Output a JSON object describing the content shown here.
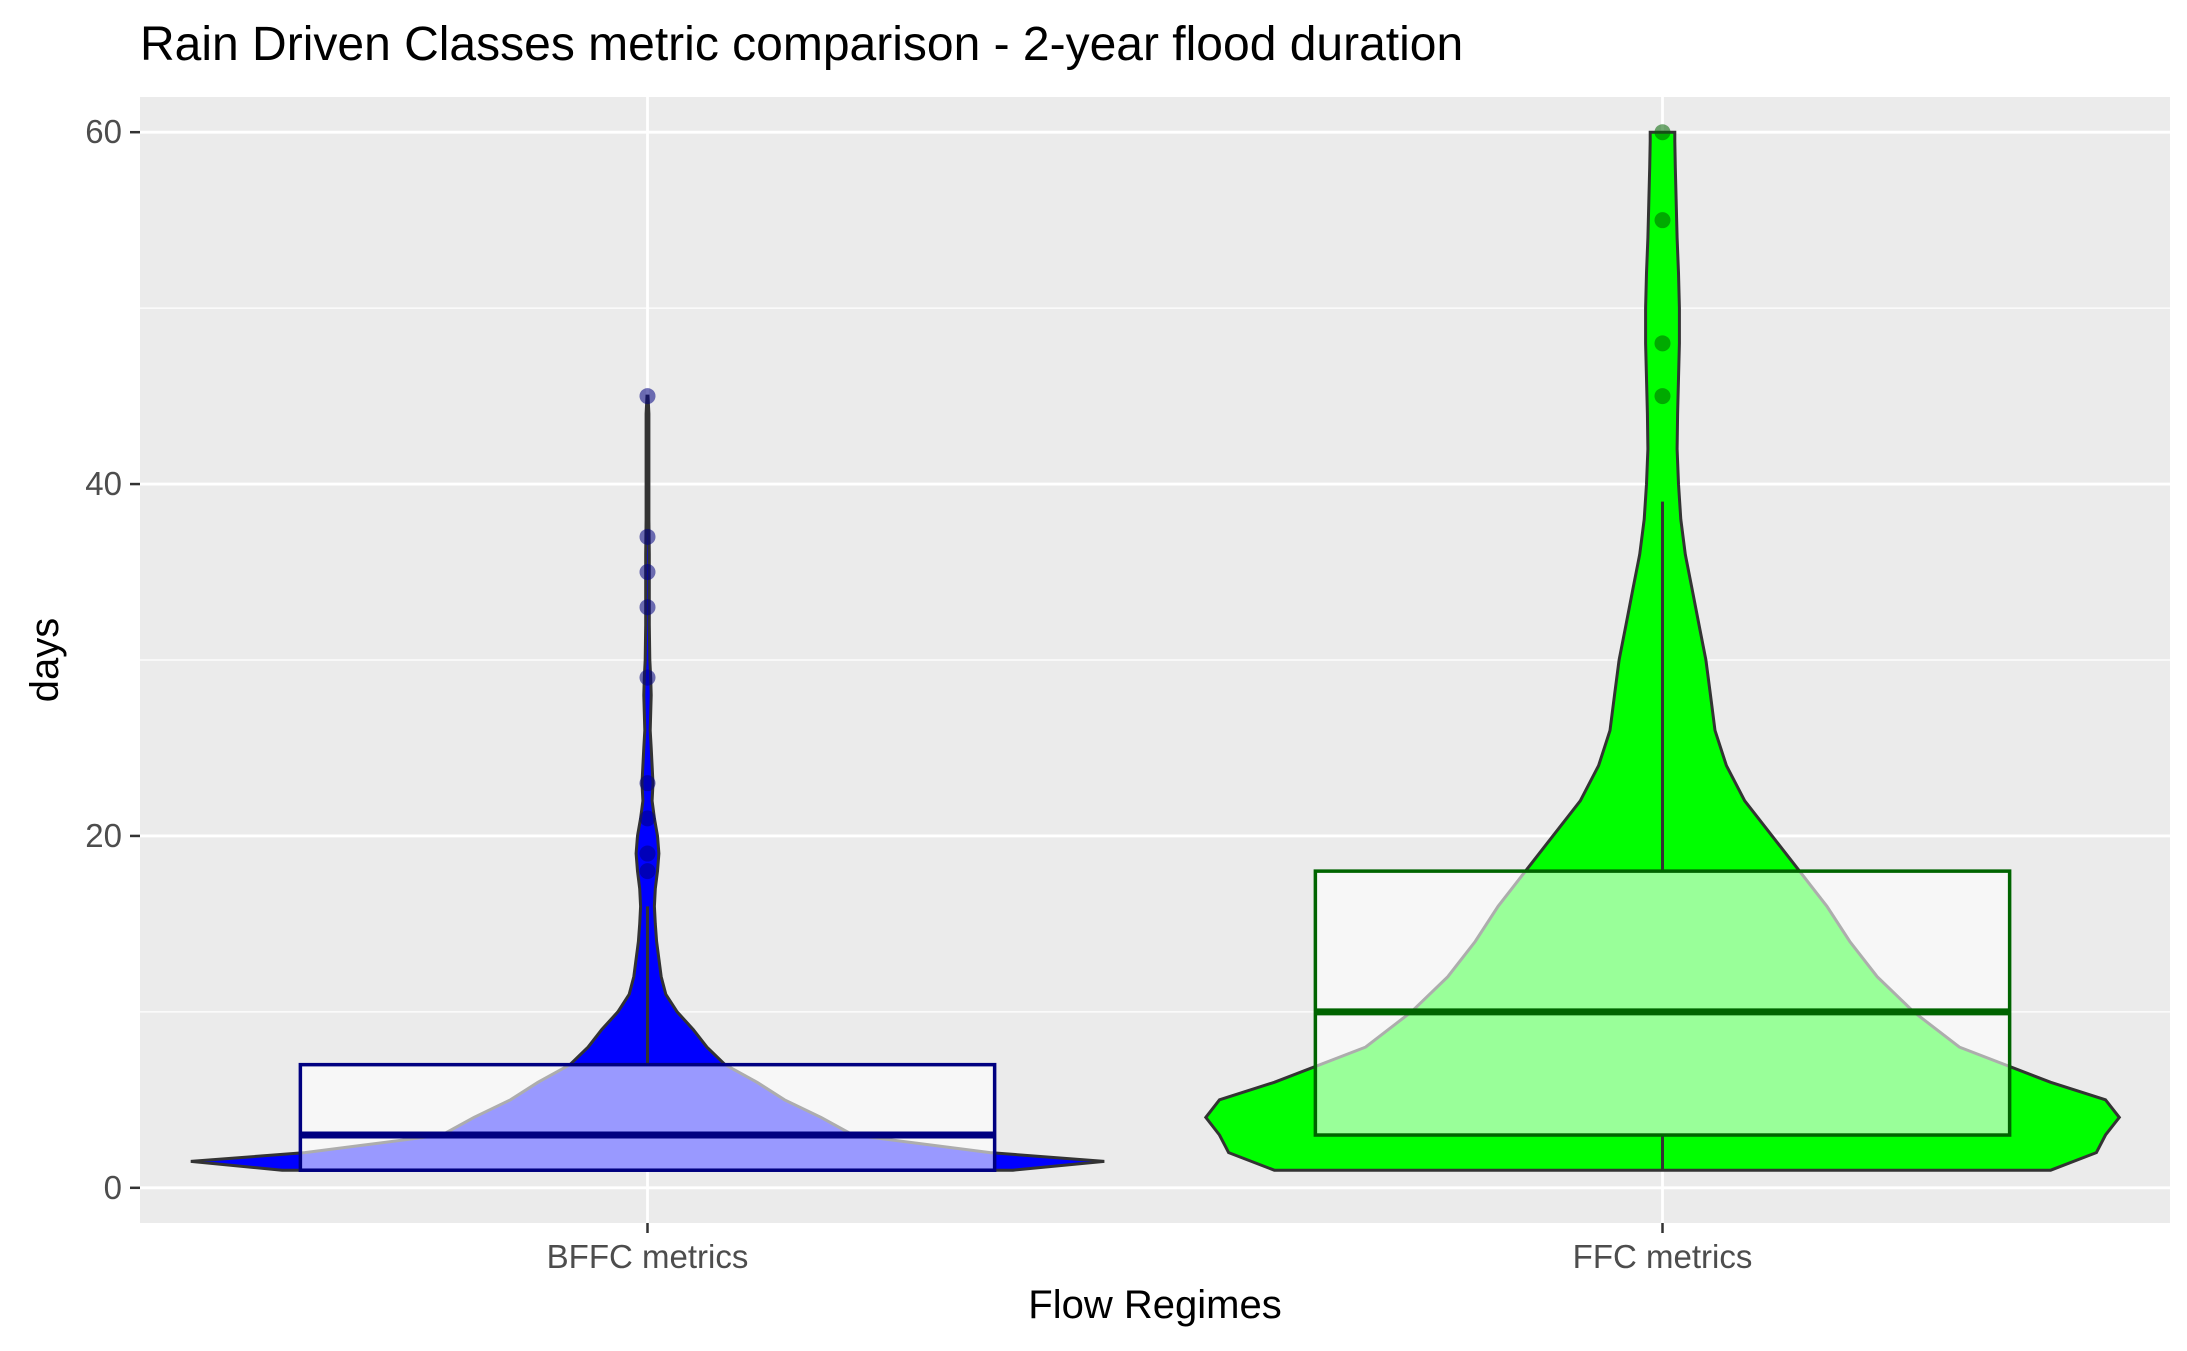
{
  "chart_data": {
    "type": "violin",
    "title": "Rain Driven Classes metric comparison - 2-year flood duration",
    "xlabel": "Flow Regimes",
    "ylabel": "days",
    "categories": [
      "BFFC metrics",
      "FFC metrics"
    ],
    "ylim": [
      -2,
      62
    ],
    "yticks": [
      0,
      20,
      40,
      60
    ],
    "grid": true,
    "legend": "none",
    "series": [
      {
        "category": "BFFC metrics",
        "fill_color": "#0000ff",
        "box_color": "#000080",
        "box": {
          "min": 1,
          "q1": 1,
          "median": 3,
          "q3": 7,
          "whisker_high": 16
        },
        "outliers": [
          18,
          19,
          21,
          23,
          29,
          33,
          35,
          37,
          45
        ],
        "density": [
          [
            1,
            0.8
          ],
          [
            1.5,
            1.0
          ],
          [
            2,
            0.75
          ],
          [
            3,
            0.45
          ],
          [
            4,
            0.38
          ],
          [
            5,
            0.3
          ],
          [
            6,
            0.24
          ],
          [
            7,
            0.17
          ],
          [
            8,
            0.13
          ],
          [
            9,
            0.1
          ],
          [
            10,
            0.065
          ],
          [
            11,
            0.04
          ],
          [
            12,
            0.03
          ],
          [
            13,
            0.025
          ],
          [
            14,
            0.02
          ],
          [
            15,
            0.017
          ],
          [
            16,
            0.015
          ],
          [
            17,
            0.017
          ],
          [
            18,
            0.022
          ],
          [
            19,
            0.025
          ],
          [
            20,
            0.022
          ],
          [
            21,
            0.015
          ],
          [
            22,
            0.01
          ],
          [
            23,
            0.012
          ],
          [
            24,
            0.01
          ],
          [
            25,
            0.008
          ],
          [
            26,
            0.006
          ],
          [
            27,
            0.007
          ],
          [
            28,
            0.008
          ],
          [
            29,
            0.007
          ],
          [
            30,
            0.005
          ],
          [
            32,
            0.004
          ],
          [
            34,
            0.004
          ],
          [
            36,
            0.004
          ],
          [
            38,
            0.003
          ],
          [
            40,
            0.003
          ],
          [
            42,
            0.003
          ],
          [
            44,
            0.003
          ],
          [
            45,
            0.001
          ]
        ]
      },
      {
        "category": "FFC metrics",
        "fill_color": "#00ff00",
        "box_color": "#006400",
        "box": {
          "min": 1,
          "q1": 3,
          "median": 10,
          "q3": 18,
          "whisker_high": 39
        },
        "outliers": [
          45,
          48,
          55,
          60
        ],
        "density": [
          [
            1,
            0.85
          ],
          [
            2,
            0.95
          ],
          [
            3,
            0.97
          ],
          [
            4,
            1.0
          ],
          [
            5,
            0.97
          ],
          [
            6,
            0.85
          ],
          [
            8,
            0.65
          ],
          [
            10,
            0.55
          ],
          [
            12,
            0.47
          ],
          [
            14,
            0.41
          ],
          [
            16,
            0.36
          ],
          [
            18,
            0.3
          ],
          [
            20,
            0.24
          ],
          [
            22,
            0.18
          ],
          [
            24,
            0.14
          ],
          [
            26,
            0.115
          ],
          [
            28,
            0.105
          ],
          [
            30,
            0.095
          ],
          [
            32,
            0.08
          ],
          [
            34,
            0.065
          ],
          [
            36,
            0.05
          ],
          [
            38,
            0.04
          ],
          [
            40,
            0.035
          ],
          [
            42,
            0.032
          ],
          [
            44,
            0.033
          ],
          [
            46,
            0.035
          ],
          [
            48,
            0.037
          ],
          [
            50,
            0.037
          ],
          [
            52,
            0.035
          ],
          [
            54,
            0.032
          ],
          [
            56,
            0.03
          ],
          [
            58,
            0.028
          ],
          [
            59.5,
            0.027
          ],
          [
            60,
            0.027
          ]
        ]
      }
    ]
  }
}
